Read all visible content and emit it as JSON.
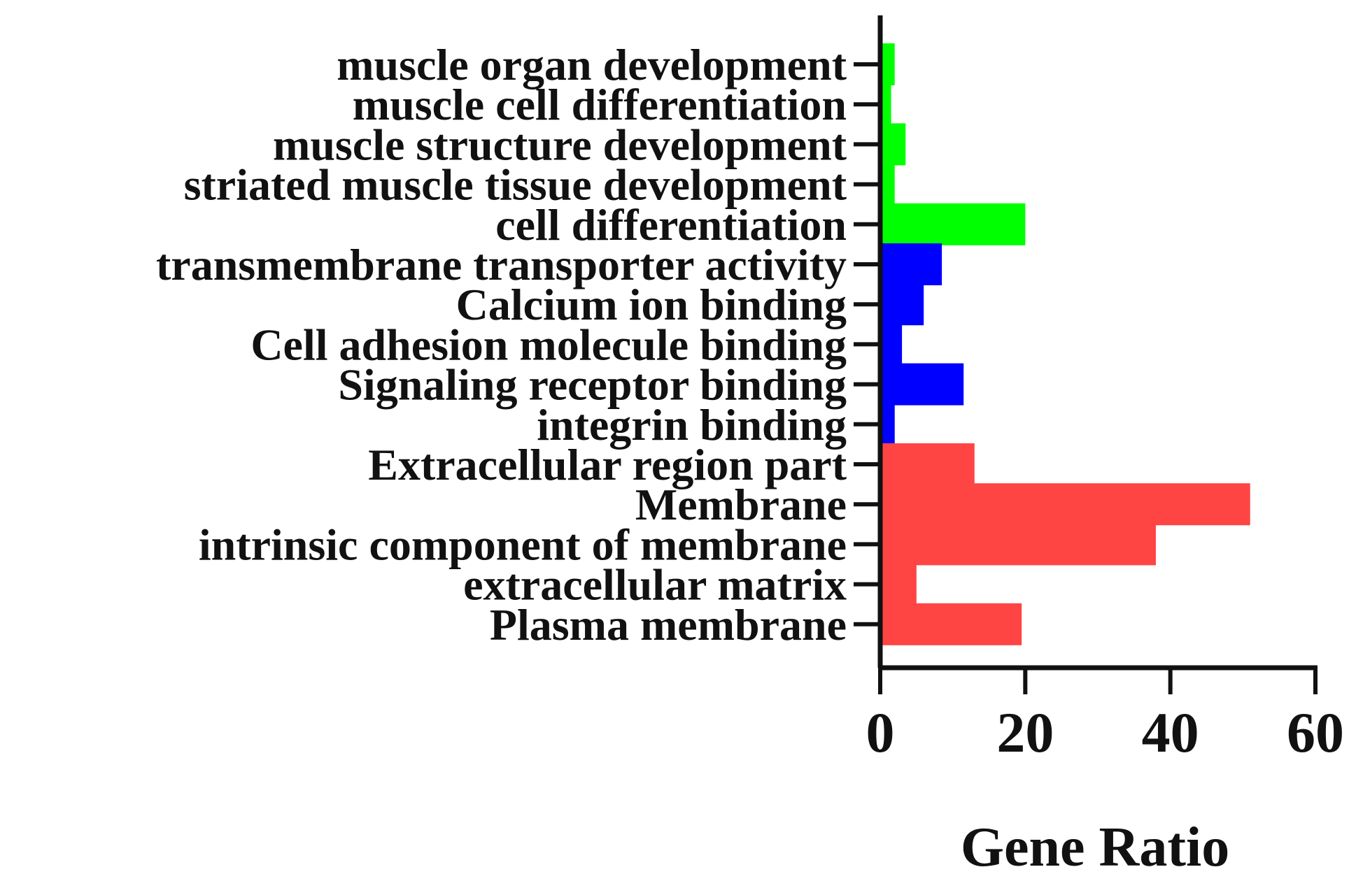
{
  "chart_data": {
    "type": "bar",
    "orientation": "horizontal",
    "categories": [
      "muscle organ development",
      "muscle cell differentiation",
      "muscle structure development",
      "striated muscle tissue development",
      "cell differentiation",
      "transmembrane transporter activity",
      "Calcium ion binding",
      "Cell adhesion molecule binding",
      "Signaling receptor binding",
      "integrin binding",
      "Extracellular region part",
      "Membrane",
      "intrinsic component of membrane",
      "extracellular matrix",
      "Plasma membrane"
    ],
    "values": [
      2,
      1.5,
      3.5,
      2,
      20,
      8.5,
      6,
      3,
      11.5,
      2,
      13,
      51,
      38,
      5,
      19.5
    ],
    "colors": [
      "#00ff00",
      "#00ff00",
      "#00ff00",
      "#00ff00",
      "#00ff00",
      "#0000ff",
      "#0000ff",
      "#0000ff",
      "#0000ff",
      "#0000ff",
      "#ff4444",
      "#ff4444",
      "#ff4444",
      "#ff4444",
      "#ff4444"
    ],
    "xlabel": "Gene Ratio",
    "xlim": [
      0,
      60
    ],
    "xticks": [
      0,
      20,
      40,
      60
    ],
    "xtick_labels": [
      "0",
      "20",
      "40",
      "60"
    ],
    "grid": false,
    "legend": false
  }
}
